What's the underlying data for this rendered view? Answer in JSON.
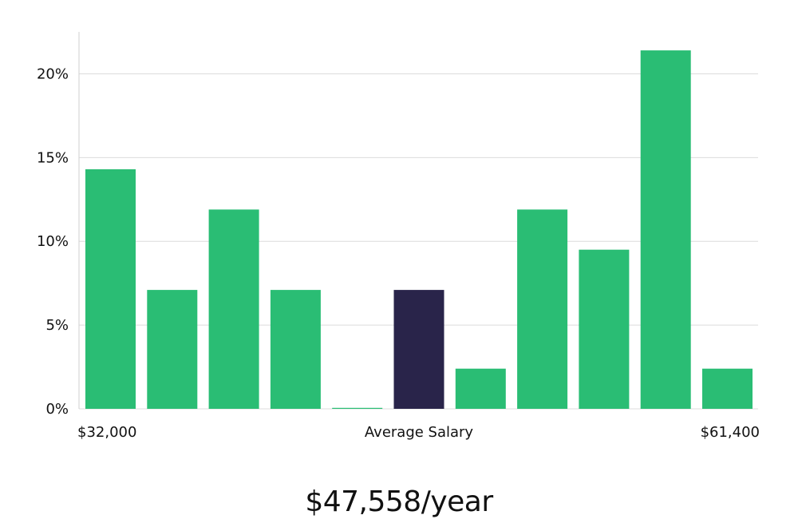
{
  "chart_data": {
    "type": "bar",
    "values": [
      14.3,
      7.1,
      11.9,
      7.1,
      0.0,
      7.1,
      2.4,
      11.9,
      9.5,
      21.4,
      2.4
    ],
    "highlight_index": 5,
    "ylim": [
      0,
      22.5
    ],
    "yticks": [
      0,
      5,
      10,
      15,
      20
    ],
    "ytick_labels": [
      "0%",
      "5%",
      "10%",
      "15%",
      "20%"
    ],
    "grid": "horizontal",
    "colors": {
      "bar": "#2abd74",
      "highlight": "#29244a",
      "grid": "#dcdcdc",
      "axis": "#cfcfcf"
    },
    "x_labels": {
      "left": "$32,000",
      "center": "Average Salary",
      "right": "$61,400"
    }
  },
  "summary": {
    "salary": "$47,558/year"
  }
}
